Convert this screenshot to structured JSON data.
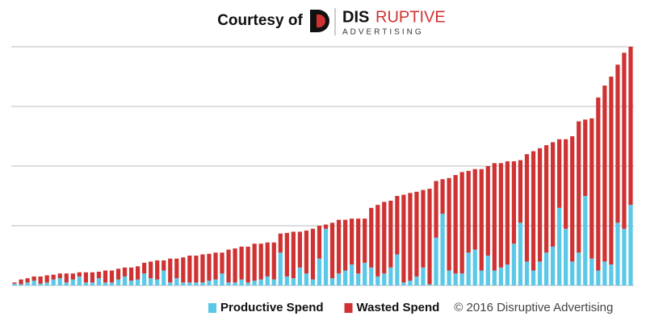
{
  "header": {
    "courtesy": "Courtesy of",
    "logo_dark": "DIS",
    "logo_red": "RUPTIVE",
    "logo_tagline": "ADVERTISING"
  },
  "chart_data": {
    "type": "stacked_bar",
    "ylim": [
      0,
      4
    ],
    "yticks": [
      0,
      1,
      2,
      3,
      4
    ],
    "grid": true,
    "tick_labels": false,
    "legend_position": "bottom-right",
    "series": [
      {
        "name": "Productive Spend",
        "color": "#5bc8e8",
        "values": [
          0.03,
          0.02,
          0.05,
          0.08,
          0.03,
          0.05,
          0.1,
          0.12,
          0.05,
          0.1,
          0.15,
          0.05,
          0.05,
          0.12,
          0.05,
          0.05,
          0.1,
          0.15,
          0.08,
          0.1,
          0.2,
          0.12,
          0.1,
          0.25,
          0.05,
          0.12,
          0.05,
          0.05,
          0.05,
          0.05,
          0.08,
          0.1,
          0.2,
          0.05,
          0.05,
          0.1,
          0.05,
          0.08,
          0.1,
          0.15,
          0.1,
          0.55,
          0.15,
          0.12,
          0.3,
          0.2,
          0.1,
          0.45,
          0.95,
          0.12,
          0.2,
          0.25,
          0.35,
          0.2,
          0.38,
          0.3,
          0.15,
          0.2,
          0.3,
          0.52,
          0.05,
          0.08,
          0.15,
          0.3,
          0.02,
          0.8,
          1.2,
          0.25,
          0.2,
          0.2,
          0.55,
          0.6,
          0.25,
          0.5,
          0.25,
          0.3,
          0.35,
          0.7,
          1.05,
          0.4,
          0.25,
          0.4,
          0.55,
          0.65,
          1.3,
          0.95,
          0.4,
          0.55,
          1.5,
          0.45,
          0.25,
          0.4,
          0.35,
          1.05,
          0.95,
          1.35
        ]
      },
      {
        "name": "Wasted Spend",
        "color": "#cf3232",
        "values": [
          0.02,
          0.08,
          0.07,
          0.07,
          0.12,
          0.12,
          0.08,
          0.08,
          0.15,
          0.1,
          0.07,
          0.17,
          0.17,
          0.11,
          0.2,
          0.2,
          0.18,
          0.15,
          0.22,
          0.22,
          0.18,
          0.28,
          0.32,
          0.17,
          0.4,
          0.33,
          0.42,
          0.45,
          0.45,
          0.47,
          0.45,
          0.45,
          0.35,
          0.55,
          0.57,
          0.55,
          0.6,
          0.62,
          0.6,
          0.57,
          0.62,
          0.32,
          0.73,
          0.78,
          0.6,
          0.72,
          0.85,
          0.55,
          0.07,
          0.93,
          0.9,
          0.85,
          0.77,
          0.92,
          0.74,
          1.0,
          1.2,
          1.2,
          1.12,
          0.98,
          1.47,
          1.47,
          1.42,
          1.3,
          1.6,
          0.95,
          0.58,
          1.55,
          1.65,
          1.7,
          1.37,
          1.35,
          1.7,
          1.5,
          1.8,
          1.75,
          1.73,
          1.38,
          1.05,
          1.8,
          2.0,
          1.9,
          1.8,
          1.75,
          1.15,
          1.5,
          2.1,
          2.2,
          1.28,
          2.35,
          2.9,
          2.95,
          3.15,
          2.65,
          2.95,
          2.65
        ]
      }
    ]
  },
  "footer": {
    "copyright": "© 2016 Disruptive Advertising"
  }
}
